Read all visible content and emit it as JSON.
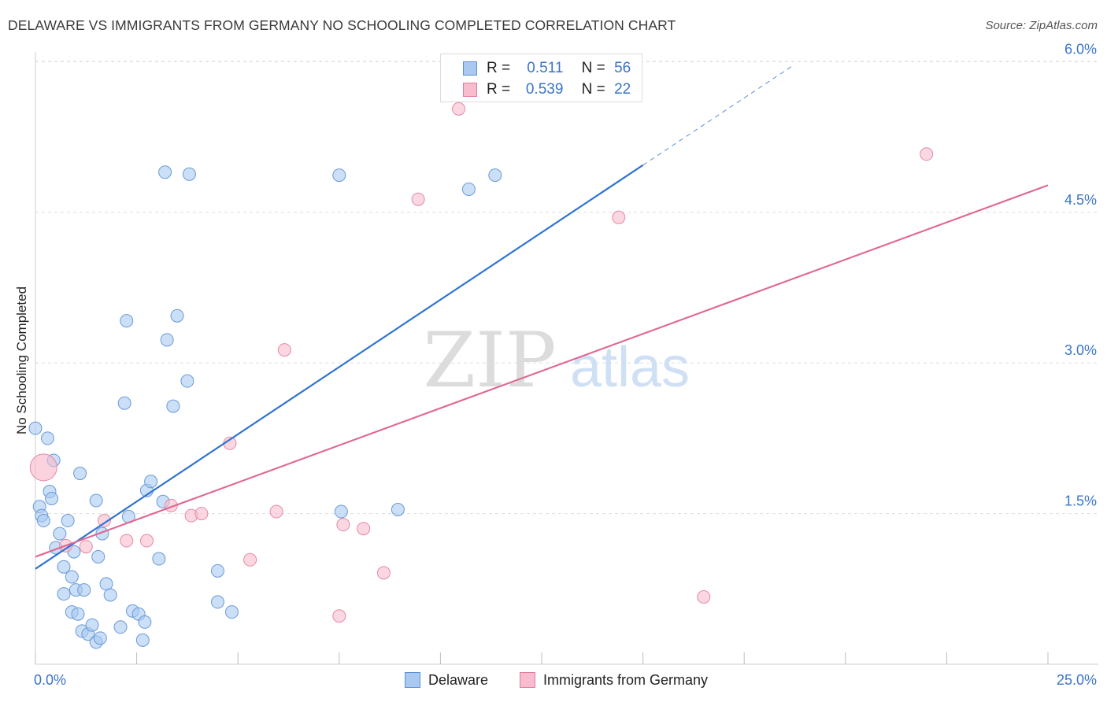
{
  "title": "DELAWARE VS IMMIGRANTS FROM GERMANY NO SCHOOLING COMPLETED CORRELATION CHART",
  "source": "Source: ZipAtlas.com",
  "watermark": {
    "zip": "ZIP",
    "atlas": "atlas"
  },
  "legend": {
    "r_label": "R =",
    "n_label": "N =",
    "rows": [
      {
        "r": "0.511",
        "n": "56",
        "color": "#a9c9f0",
        "border": "#5b8fd6"
      },
      {
        "r": "0.539",
        "n": "22",
        "color": "#f7bccd",
        "border": "#e27a9b"
      }
    ]
  },
  "chart_data": {
    "type": "scatter",
    "title": "DELAWARE VS IMMIGRANTS FROM GERMANY NO SCHOOLING COMPLETED CORRELATION CHART",
    "xlabel": "",
    "ylabel": "No Schooling Completed",
    "xlim": [
      0,
      25
    ],
    "ylim": [
      0,
      6.3
    ],
    "x_ticks": [
      0,
      2.5,
      5,
      7.5,
      10,
      12.5,
      15,
      17.5,
      20,
      22.5,
      25
    ],
    "x_tick_labels": [
      {
        "x": 0,
        "label": "0.0%"
      },
      {
        "x": 25,
        "label": "25.0%"
      }
    ],
    "y_ticks": [
      {
        "y": 1.5,
        "label": "1.5%"
      },
      {
        "y": 3.0,
        "label": "3.0%"
      },
      {
        "y": 4.5,
        "label": "4.5%"
      },
      {
        "y": 6.0,
        "label": "6.0%"
      }
    ],
    "grid": true,
    "legend_position": "top-center",
    "series": [
      {
        "name": "Delaware",
        "color": "#a9c9f0",
        "edge": "#6a9ad8",
        "line_color": "#2f74cf",
        "trend": {
          "x0": 0,
          "y0": 0.95,
          "x1": 15,
          "y1": 4.97,
          "dashed_to_x": 18.7,
          "dashed_to_y": 5.96
        },
        "points": [
          [
            0.0,
            2.35
          ],
          [
            0.3,
            2.25
          ],
          [
            0.45,
            2.03
          ],
          [
            0.1,
            1.57
          ],
          [
            0.35,
            1.72
          ],
          [
            0.4,
            1.65
          ],
          [
            0.15,
            1.48
          ],
          [
            0.2,
            1.43
          ],
          [
            0.5,
            1.16
          ],
          [
            0.6,
            1.3
          ],
          [
            0.7,
            0.97
          ],
          [
            0.8,
            1.43
          ],
          [
            0.9,
            0.87
          ],
          [
            0.95,
            1.12
          ],
          [
            1.1,
            1.9
          ],
          [
            0.7,
            0.7
          ],
          [
            0.9,
            0.52
          ],
          [
            1.0,
            0.74
          ],
          [
            1.05,
            0.5
          ],
          [
            1.15,
            0.33
          ],
          [
            1.2,
            0.74
          ],
          [
            1.3,
            0.3
          ],
          [
            1.4,
            0.39
          ],
          [
            1.5,
            0.22
          ],
          [
            1.6,
            0.26
          ],
          [
            1.5,
            1.63
          ],
          [
            1.55,
            1.07
          ],
          [
            1.65,
            1.3
          ],
          [
            1.75,
            0.8
          ],
          [
            1.85,
            0.69
          ],
          [
            2.1,
            0.37
          ],
          [
            2.2,
            2.6
          ],
          [
            2.25,
            3.42
          ],
          [
            2.3,
            1.47
          ],
          [
            2.4,
            0.53
          ],
          [
            2.55,
            0.5
          ],
          [
            2.65,
            0.24
          ],
          [
            2.7,
            0.42
          ],
          [
            2.75,
            1.73
          ],
          [
            2.85,
            1.82
          ],
          [
            3.05,
            1.05
          ],
          [
            3.15,
            1.62
          ],
          [
            3.2,
            4.9
          ],
          [
            3.25,
            3.23
          ],
          [
            3.4,
            2.57
          ],
          [
            3.5,
            3.47
          ],
          [
            3.75,
            2.82
          ],
          [
            3.8,
            4.88
          ],
          [
            4.5,
            0.93
          ],
          [
            4.5,
            0.62
          ],
          [
            4.85,
            0.52
          ],
          [
            7.5,
            4.87
          ],
          [
            7.55,
            1.52
          ],
          [
            8.95,
            1.54
          ],
          [
            10.7,
            4.73
          ],
          [
            11.35,
            4.87
          ]
        ]
      },
      {
        "name": "Immigrants from Germany",
        "color": "#f7bccd",
        "edge": "#e58aa6",
        "line_color": "#e06892",
        "trend": {
          "x0": 0,
          "y0": 1.07,
          "x1": 25,
          "y1": 4.77
        },
        "points": [
          [
            0.2,
            1.96
          ],
          [
            0.75,
            1.18
          ],
          [
            1.25,
            1.17
          ],
          [
            1.7,
            1.43
          ],
          [
            2.25,
            1.23
          ],
          [
            2.75,
            1.23
          ],
          [
            3.35,
            1.58
          ],
          [
            3.85,
            1.48
          ],
          [
            4.1,
            1.5
          ],
          [
            4.8,
            2.2
          ],
          [
            5.3,
            1.04
          ],
          [
            5.95,
            1.52
          ],
          [
            6.15,
            3.13
          ],
          [
            7.5,
            0.48
          ],
          [
            7.6,
            1.39
          ],
          [
            8.1,
            1.35
          ],
          [
            8.6,
            0.91
          ],
          [
            9.45,
            4.63
          ],
          [
            10.45,
            5.53
          ],
          [
            14.4,
            4.45
          ],
          [
            16.5,
            0.67
          ],
          [
            22.0,
            5.08
          ]
        ]
      }
    ]
  },
  "bottom_legend": [
    "Delaware",
    "Immigrants from Germany"
  ]
}
